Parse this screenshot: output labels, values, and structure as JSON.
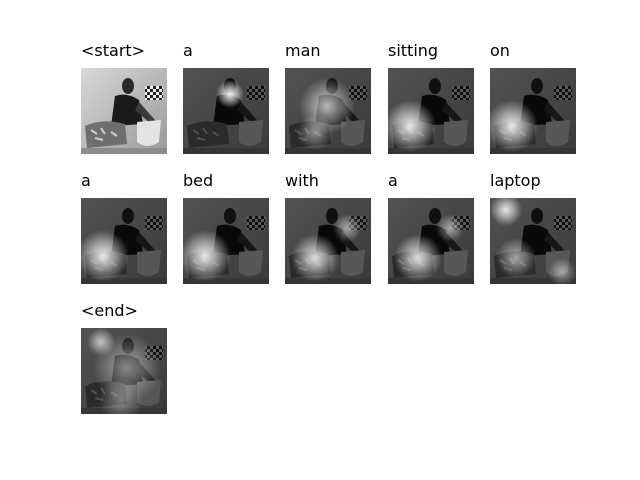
{
  "frames": [
    {
      "word": "<start>",
      "focus": null,
      "style": "original"
    },
    {
      "word": "a",
      "focus": "head",
      "style": "attention"
    },
    {
      "word": "man",
      "focus": "torso",
      "style": "attention"
    },
    {
      "word": "sitting",
      "focus": "lower-left",
      "style": "attention"
    },
    {
      "word": "on",
      "focus": "lower-left",
      "style": "attention"
    },
    {
      "word": "a",
      "focus": "lower-left",
      "style": "attention"
    },
    {
      "word": "bed",
      "focus": "lower-left",
      "style": "attention"
    },
    {
      "word": "with",
      "focus": "lower-center",
      "style": "attention"
    },
    {
      "word": "a",
      "focus": "lower-center",
      "style": "attention"
    },
    {
      "word": "laptop",
      "focus": "top-left",
      "style": "attention"
    },
    {
      "word": "<end>",
      "focus": "diffuse",
      "style": "attention"
    }
  ]
}
